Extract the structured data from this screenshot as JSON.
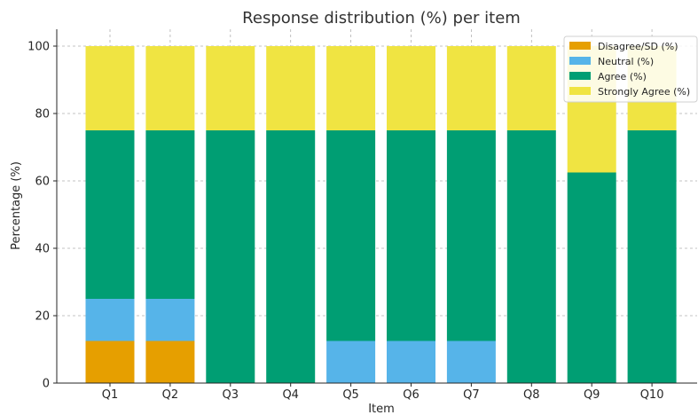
{
  "chart_data": {
    "type": "bar",
    "stacked": true,
    "title": "Response distribution (%) per item",
    "xlabel": "Item",
    "ylabel": "Percentage (%)",
    "ylim": [
      0,
      105
    ],
    "yticks": [
      0,
      20,
      40,
      60,
      80,
      100
    ],
    "grid": true,
    "legend_position": "top-right",
    "categories": [
      "Q1",
      "Q2",
      "Q3",
      "Q4",
      "Q5",
      "Q6",
      "Q7",
      "Q8",
      "Q9",
      "Q10"
    ],
    "series": [
      {
        "name": "Disagree/SD (%)",
        "color": "#E69F00",
        "values": [
          12.5,
          12.5,
          0,
          0,
          0,
          0,
          0,
          0,
          0,
          0
        ]
      },
      {
        "name": "Neutral (%)",
        "color": "#56B4E9",
        "values": [
          12.5,
          12.5,
          0,
          0,
          12.5,
          12.5,
          12.5,
          0,
          0,
          0
        ]
      },
      {
        "name": "Agree (%)",
        "color": "#009E73",
        "values": [
          50,
          50,
          75,
          75,
          62.5,
          62.5,
          62.5,
          75,
          62.5,
          75
        ]
      },
      {
        "name": "Strongly Agree (%)",
        "color": "#F0E442",
        "values": [
          25,
          25,
          25,
          25,
          25,
          25,
          25,
          25,
          37.5,
          25
        ]
      }
    ]
  }
}
